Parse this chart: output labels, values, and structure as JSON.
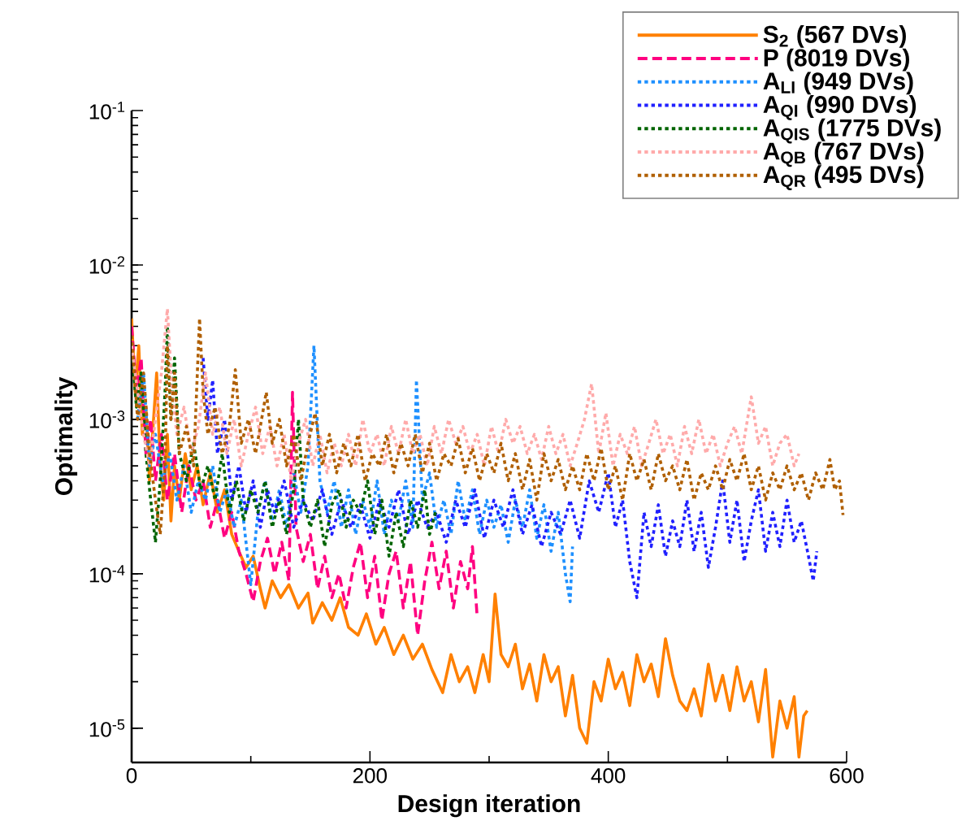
{
  "chart_data": {
    "type": "line",
    "xlabel": "Design iteration",
    "ylabel": "Optimality",
    "log": "y",
    "legend": "top right",
    "marker": "none",
    "xlim": [
      0,
      600
    ],
    "ylim": [
      6e-06,
      0.1
    ],
    "xticks": [
      0,
      200,
      400,
      600
    ],
    "yticks": [
      {
        "value": 1e-05,
        "label": "10$^{-5}$"
      },
      {
        "value": 0.0001,
        "label": "10$^{-4}$"
      },
      {
        "value": 0.001,
        "label": "10$^{-3}$"
      },
      {
        "value": 0.01,
        "label": "10$^{-2}$"
      },
      {
        "value": 0.1,
        "label": "10$^{-1}$"
      }
    ],
    "series": [
      {
        "name": "S$_{2}$  (567 DVs)",
        "color": "#ff8000",
        "line_style": "solid",
        "x": [
          0,
          3,
          6,
          9,
          12,
          15,
          18,
          21,
          24,
          27,
          30,
          33,
          36,
          40,
          45,
          50,
          55,
          60,
          66,
          72,
          78,
          84,
          90,
          96,
          102,
          108,
          112,
          118,
          125,
          132,
          140,
          148,
          152,
          160,
          168,
          175,
          182,
          190,
          197,
          205,
          212,
          220,
          228,
          236,
          244,
          252,
          261,
          268,
          275,
          282,
          288,
          295,
          300,
          305,
          310,
          316,
          322,
          328,
          334,
          340,
          346,
          352,
          358,
          364,
          370,
          376,
          382,
          388,
          394,
          400,
          406,
          412,
          418,
          424,
          430,
          436,
          442,
          448,
          454,
          460,
          466,
          472,
          478,
          484,
          490,
          496,
          502,
          508,
          514,
          520,
          526,
          532,
          538,
          544,
          550,
          556,
          560,
          564,
          567
        ],
        "values": [
          0.0045,
          0.0015,
          0.003,
          0.0008,
          0.0012,
          0.0004,
          0.0009,
          0.002,
          0.0005,
          0.0003,
          0.0008,
          0.00022,
          0.0005,
          0.0003,
          0.0006,
          0.00035,
          0.0005,
          0.00028,
          0.00045,
          0.00025,
          0.00035,
          0.00018,
          0.00014,
          0.00011,
          0.00013,
          8e-05,
          6e-05,
          9e-05,
          7e-05,
          8.5e-05,
          6e-05,
          7.5e-05,
          4.8e-05,
          6.5e-05,
          5e-05,
          7e-05,
          4.5e-05,
          4e-05,
          5.5e-05,
          3.5e-05,
          4.5e-05,
          3e-05,
          4e-05,
          2.8e-05,
          3.5e-05,
          2.4e-05,
          1.7e-05,
          3e-05,
          2e-05,
          2.5e-05,
          1.7e-05,
          3e-05,
          2e-05,
          7.4e-05,
          3e-05,
          2.5e-05,
          3.5e-05,
          1.8e-05,
          2.6e-05,
          1.5e-05,
          3e-05,
          2e-05,
          2.5e-05,
          1.2e-05,
          2.2e-05,
          1e-05,
          8e-06,
          2e-05,
          1.5e-05,
          2.8e-05,
          1.8e-05,
          2.3e-05,
          1.4e-05,
          3e-05,
          2e-05,
          2.6e-05,
          1.6e-05,
          3.8e-05,
          2.2e-05,
          1.5e-05,
          1.3e-05,
          1.8e-05,
          1.2e-05,
          2.6e-05,
          1.5e-05,
          2.2e-05,
          1.3e-05,
          2.5e-05,
          1.5e-05,
          2e-05,
          1.1e-05,
          2.4e-05,
          6.5e-06,
          1.5e-05,
          1e-05,
          1.6e-05,
          6.5e-06,
          1.2e-05,
          1.3e-05
        ]
      },
      {
        "name": "P  (8019 DVs)",
        "color": "#ff0080",
        "line_style": "dashed",
        "x": [
          0,
          4,
          8,
          12,
          16,
          20,
          25,
          30,
          36,
          42,
          48,
          54,
          60,
          66,
          72,
          78,
          84,
          90,
          96,
          102,
          108,
          114,
          120,
          126,
          132,
          135,
          138,
          144,
          150,
          156,
          162,
          168,
          174,
          180,
          186,
          192,
          198,
          204,
          210,
          216,
          222,
          228,
          234,
          240,
          246,
          252,
          258,
          264,
          270,
          276,
          282,
          286,
          290
        ],
        "values": [
          0.004,
          0.0015,
          0.0025,
          0.0006,
          0.001,
          0.0004,
          0.0008,
          0.0003,
          0.0006,
          0.00025,
          0.0005,
          0.0003,
          0.0004,
          0.0002,
          0.0003,
          0.00017,
          0.00025,
          0.00014,
          0.0001,
          6.6e-05,
          0.00012,
          0.00017,
          0.0001,
          0.00016,
          9e-05,
          0.0015,
          0.0002,
          0.00012,
          0.00018,
          8e-05,
          0.00013,
          7e-05,
          0.0001,
          6e-05,
          0.00011,
          0.00016,
          7e-05,
          0.00013,
          5e-05,
          0.0001,
          0.00014,
          6e-05,
          0.00012,
          4e-05,
          9e-05,
          0.00016,
          8e-05,
          0.00014,
          6e-05,
          0.00012,
          8e-05,
          0.00015,
          5.2e-05
        ]
      },
      {
        "name": "A$_{LI}$  (949 DVs)",
        "color": "#1e90ff",
        "line_style": "dotted",
        "x": [
          5,
          10,
          15,
          20,
          26,
          32,
          38,
          44,
          50,
          56,
          62,
          68,
          74,
          80,
          86,
          92,
          100,
          106,
          112,
          118,
          124,
          130,
          136,
          142,
          148,
          153,
          158,
          164,
          170,
          176,
          182,
          188,
          194,
          200,
          206,
          212,
          218,
          224,
          230,
          236,
          239,
          244,
          250,
          256,
          262,
          268,
          274,
          280,
          286,
          292,
          298,
          304,
          310,
          316,
          322,
          328,
          334,
          340,
          346,
          352,
          358,
          364,
          368,
          370
        ],
        "values": [
          0.001,
          0.002,
          0.0005,
          0.0008,
          0.0004,
          0.0006,
          0.0003,
          0.0005,
          0.00025,
          0.0004,
          0.0003,
          0.0005,
          0.00025,
          0.00035,
          0.0002,
          0.0003,
          8.5e-05,
          0.00025,
          0.0004,
          0.00022,
          0.00035,
          0.0002,
          0.00045,
          0.00025,
          0.0005,
          0.003,
          0.0004,
          0.00025,
          0.0004,
          0.0002,
          0.00035,
          0.00018,
          0.0003,
          0.0002,
          0.0004,
          0.00018,
          0.0003,
          0.00022,
          0.0004,
          0.0002,
          0.0018,
          0.0003,
          0.00045,
          0.0002,
          0.0003,
          0.00018,
          0.0004,
          0.00022,
          0.00035,
          0.00018,
          0.0003,
          0.0002,
          0.00028,
          0.00016,
          0.0003,
          0.0002,
          0.00035,
          0.00017,
          0.00028,
          0.00014,
          0.00025,
          0.0001,
          6.6e-05,
          0.00015
        ]
      },
      {
        "name": "A$_{QI}$  (990 DVs)",
        "color": "#2020ff",
        "line_style": "dotted",
        "x": [
          60,
          64,
          68,
          72,
          78,
          84,
          90,
          96,
          102,
          108,
          114,
          120,
          128,
          136,
          144,
          152,
          160,
          168,
          176,
          184,
          192,
          200,
          208,
          216,
          224,
          232,
          240,
          248,
          256,
          264,
          272,
          280,
          288,
          296,
          304,
          312,
          320,
          328,
          336,
          344,
          352,
          360,
          368,
          376,
          384,
          392,
          400,
          406,
          412,
          418,
          424,
          430,
          436,
          442,
          448,
          454,
          460,
          466,
          472,
          478,
          484,
          490,
          496,
          502,
          508,
          514,
          520,
          526,
          532,
          538,
          544,
          550,
          556,
          562,
          568,
          572,
          575
        ],
        "values": [
          0.0025,
          0.001,
          0.0018,
          0.0006,
          0.001,
          0.0003,
          0.0005,
          0.00025,
          0.0004,
          0.0002,
          0.00035,
          0.00025,
          0.0004,
          0.0002,
          0.0003,
          0.00022,
          0.00035,
          0.00018,
          0.0003,
          0.0002,
          0.00028,
          0.00017,
          0.0003,
          0.0002,
          0.00035,
          0.00018,
          0.0003,
          0.0002,
          0.00025,
          0.00016,
          0.0003,
          0.0002,
          0.00035,
          0.00017,
          0.0003,
          0.0002,
          0.00035,
          0.00018,
          0.00028,
          0.00015,
          0.00025,
          0.00018,
          0.0003,
          0.00017,
          0.0004,
          0.00025,
          0.00045,
          0.0002,
          0.0003,
          0.00012,
          7e-05,
          0.00025,
          0.00015,
          0.00028,
          0.00013,
          0.00022,
          0.00015,
          0.0003,
          0.00014,
          0.00025,
          0.00011,
          0.0002,
          0.0004,
          0.00016,
          0.0003,
          0.00012,
          0.00022,
          0.00035,
          0.00014,
          0.00025,
          0.00015,
          0.0003,
          0.00016,
          0.00022,
          0.00013,
          9e-05,
          0.00014
        ]
      },
      {
        "name": "A$_{QIS}$ (1775 DVs)",
        "color": "#006400",
        "line_style": "dotted",
        "x": [
          0,
          4,
          8,
          12,
          16,
          20,
          24,
          28,
          30,
          33,
          36,
          40,
          46,
          52,
          58,
          64,
          70,
          76,
          82,
          88,
          94,
          100,
          106,
          112,
          118,
          124,
          130,
          136,
          140,
          144,
          150,
          156,
          162,
          168,
          174,
          180,
          186,
          192,
          198,
          204,
          210,
          216,
          222,
          228,
          234,
          240,
          246,
          250,
          255
        ],
        "values": [
          0.003,
          0.0012,
          0.002,
          0.0006,
          0.0003,
          0.00016,
          0.0004,
          0.0015,
          0.004,
          0.001,
          0.0025,
          0.0006,
          0.0004,
          0.0007,
          0.00035,
          0.0005,
          0.0003,
          0.0006,
          0.00025,
          0.0004,
          0.00022,
          0.00035,
          0.00025,
          0.0004,
          0.0002,
          0.0003,
          0.00018,
          0.00035,
          0.001,
          0.0003,
          0.0002,
          0.0003,
          0.00015,
          0.00028,
          0.00035,
          0.0002,
          0.0003,
          0.00025,
          0.0004,
          0.00018,
          0.0003,
          0.00013,
          0.00025,
          0.00015,
          0.0003,
          0.0002,
          0.00035,
          0.00018,
          0.00025
        ]
      },
      {
        "name": "A$_{QB}$  (767 DVs)",
        "color": "#ffaaaa",
        "line_style": "dotted",
        "x": [
          0,
          5,
          10,
          15,
          20,
          25,
          30,
          34,
          38,
          44,
          50,
          56,
          62,
          68,
          74,
          80,
          86,
          92,
          98,
          104,
          110,
          116,
          122,
          128,
          134,
          140,
          146,
          152,
          158,
          164,
          170,
          176,
          182,
          188,
          194,
          200,
          206,
          212,
          218,
          224,
          230,
          236,
          242,
          248,
          254,
          260,
          266,
          272,
          278,
          284,
          290,
          296,
          302,
          308,
          314,
          320,
          326,
          332,
          338,
          344,
          350,
          356,
          362,
          368,
          374,
          380,
          386,
          392,
          398,
          404,
          410,
          416,
          422,
          428,
          434,
          440,
          446,
          452,
          458,
          464,
          470,
          476,
          482,
          488,
          494,
          500,
          506,
          512,
          520,
          526,
          532,
          538,
          544,
          550,
          556,
          560
        ],
        "values": [
          0.003,
          0.0015,
          0.0008,
          0.0005,
          0.001,
          0.002,
          0.0052,
          0.0015,
          0.0008,
          0.0012,
          0.0006,
          0.0009,
          0.002,
          0.0008,
          0.0012,
          0.0006,
          0.001,
          0.0005,
          0.0008,
          0.0012,
          0.0006,
          0.0009,
          0.0005,
          0.0008,
          0.0004,
          0.0007,
          0.001,
          0.0005,
          0.0008,
          0.00045,
          0.0007,
          0.0005,
          0.0008,
          0.0005,
          0.001,
          0.0006,
          0.0008,
          0.0005,
          0.0009,
          0.0006,
          0.001,
          0.0006,
          0.0008,
          0.0005,
          0.0009,
          0.0006,
          0.001,
          0.0007,
          0.0009,
          0.0006,
          0.0008,
          0.0005,
          0.0009,
          0.0006,
          0.001,
          0.0007,
          0.0009,
          0.0006,
          0.0008,
          0.00055,
          0.0009,
          0.0006,
          0.0008,
          0.0005,
          0.0007,
          0.001,
          0.0017,
          0.0006,
          0.0011,
          0.0005,
          0.0008,
          0.0006,
          0.0009,
          0.0005,
          0.0007,
          0.001,
          0.0006,
          0.0008,
          0.0005,
          0.0009,
          0.0006,
          0.001,
          0.0006,
          0.0008,
          0.0005,
          0.0007,
          0.0009,
          0.0006,
          0.0014,
          0.0007,
          0.0009,
          0.0005,
          0.0007,
          0.0008,
          0.0005,
          0.0006
        ]
      },
      {
        "name": "A$_{QR}$  (495 DVs)",
        "color": "#b05f00",
        "line_style": "dotted",
        "x": [
          0,
          5,
          10,
          15,
          20,
          24,
          28,
          30,
          33,
          36,
          40,
          46,
          52,
          57,
          60,
          64,
          70,
          76,
          82,
          87,
          92,
          98,
          104,
          108,
          113,
          118,
          124,
          130,
          136,
          142,
          148,
          154,
          160,
          166,
          172,
          178,
          184,
          190,
          196,
          202,
          208,
          214,
          220,
          226,
          232,
          238,
          244,
          250,
          256,
          262,
          268,
          274,
          280,
          286,
          292,
          298,
          304,
          310,
          316,
          322,
          328,
          334,
          340,
          346,
          352,
          358,
          364,
          370,
          376,
          382,
          388,
          394,
          400,
          406,
          412,
          418,
          424,
          430,
          436,
          442,
          448,
          454,
          460,
          466,
          472,
          478,
          484,
          490,
          496,
          502,
          508,
          514,
          520,
          526,
          532,
          538,
          544,
          550,
          556,
          562,
          568,
          574,
          580,
          586,
          590,
          594,
          597
        ],
        "values": [
          0.0035,
          0.001,
          0.002,
          0.0006,
          0.0003,
          0.00018,
          0.0005,
          0.003,
          0.001,
          0.002,
          0.0006,
          0.0009,
          0.0005,
          0.0045,
          0.0015,
          0.0008,
          0.0012,
          0.0006,
          0.0009,
          0.0021,
          0.0007,
          0.001,
          0.0006,
          0.0009,
          0.0015,
          0.0007,
          0.001,
          0.0005,
          0.0008,
          0.0004,
          0.0007,
          0.0011,
          0.0005,
          0.0008,
          0.00045,
          0.0007,
          0.0005,
          0.0008,
          0.0004,
          0.0006,
          0.0005,
          0.0008,
          0.00045,
          0.0007,
          0.0005,
          0.0008,
          0.00045,
          0.0007,
          0.0004,
          0.0006,
          0.0005,
          0.00075,
          0.00045,
          0.00065,
          0.0004,
          0.0006,
          0.00045,
          0.0007,
          0.0004,
          0.0006,
          0.00035,
          0.00055,
          0.0003,
          0.0006,
          0.0004,
          0.00055,
          0.00035,
          0.0005,
          0.00035,
          0.0006,
          0.0004,
          0.00065,
          0.00035,
          0.0005,
          0.0003,
          0.0006,
          0.0004,
          0.00055,
          0.00035,
          0.0006,
          0.0004,
          0.0005,
          0.00035,
          0.00055,
          0.0003,
          0.00045,
          0.00035,
          0.0005,
          0.00035,
          0.00055,
          0.0004,
          0.0006,
          0.00035,
          0.0005,
          0.0003,
          0.00045,
          0.00035,
          0.0005,
          0.00035,
          0.00045,
          0.0003,
          0.00045,
          0.00035,
          0.00055,
          0.00035,
          0.0004,
          0.00024
        ]
      }
    ]
  }
}
